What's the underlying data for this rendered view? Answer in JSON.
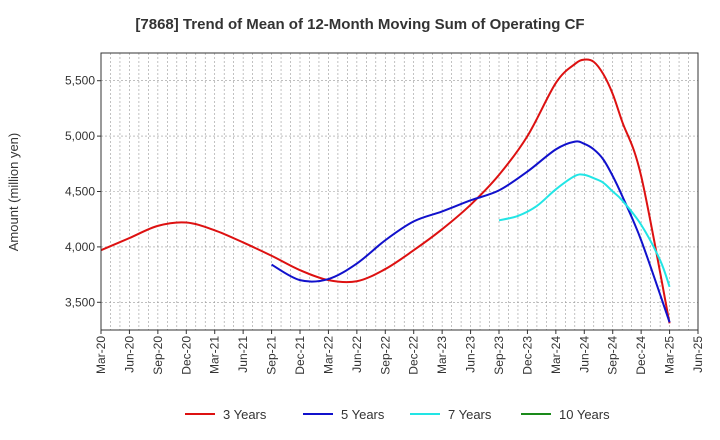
{
  "chart_data": {
    "type": "line",
    "title": "[7868]  Trend of Mean of 12-Month Moving Sum of Operating CF",
    "xlabel": "",
    "ylabel": "Amount (million yen)",
    "ylim": [
      3250,
      5750
    ],
    "yticks": [
      3500,
      4000,
      4500,
      5000,
      5500
    ],
    "ytick_labels": [
      "3,500",
      "4,000",
      "4,500",
      "5,000",
      "5,500"
    ],
    "x_ticks": [
      "Mar-20",
      "Jun-20",
      "Sep-20",
      "Dec-20",
      "Mar-21",
      "Jun-21",
      "Sep-21",
      "Dec-21",
      "Mar-22",
      "Jun-22",
      "Sep-22",
      "Dec-22",
      "Mar-23",
      "Jun-23",
      "Sep-23",
      "Dec-23",
      "Mar-24",
      "Jun-24",
      "Sep-24",
      "Dec-24",
      "Mar-25",
      "Jun-25"
    ],
    "x_index_note": "x is month index from Mar-20 = 0",
    "grid": true,
    "legend_position": "bottom",
    "series": [
      {
        "name": "3 Years",
        "color": "#dd1111",
        "x": [
          0,
          3,
          6,
          9,
          12,
          15,
          18,
          21,
          24,
          27,
          30,
          33,
          36,
          39,
          42,
          45,
          48,
          50,
          51,
          52,
          53,
          54,
          55,
          57,
          60
        ],
        "values": [
          3970,
          4080,
          4190,
          4220,
          4150,
          4040,
          3920,
          3790,
          3700,
          3690,
          3800,
          3970,
          4160,
          4380,
          4650,
          5000,
          5480,
          5650,
          5690,
          5670,
          5560,
          5380,
          5130,
          4640,
          3310
        ]
      },
      {
        "name": "5 Years",
        "color": "#1111cc",
        "x": [
          18,
          21,
          24,
          27,
          30,
          33,
          36,
          39,
          42,
          45,
          48,
          50,
          51,
          52,
          53,
          54,
          55,
          57,
          60
        ],
        "values": [
          3840,
          3700,
          3710,
          3850,
          4060,
          4230,
          4320,
          4420,
          4510,
          4680,
          4880,
          4950,
          4930,
          4880,
          4790,
          4640,
          4460,
          4060,
          3320
        ]
      },
      {
        "name": "7 Years",
        "color": "#22e5e5",
        "x": [
          42,
          44,
          46,
          48,
          50,
          51,
          52,
          53,
          54,
          55,
          57,
          59,
          60
        ],
        "values": [
          4240,
          4280,
          4370,
          4520,
          4640,
          4650,
          4620,
          4580,
          4500,
          4420,
          4200,
          3880,
          3640
        ]
      },
      {
        "name": "10 Years",
        "color": "#1a8a1a",
        "x": [],
        "values": []
      }
    ]
  }
}
